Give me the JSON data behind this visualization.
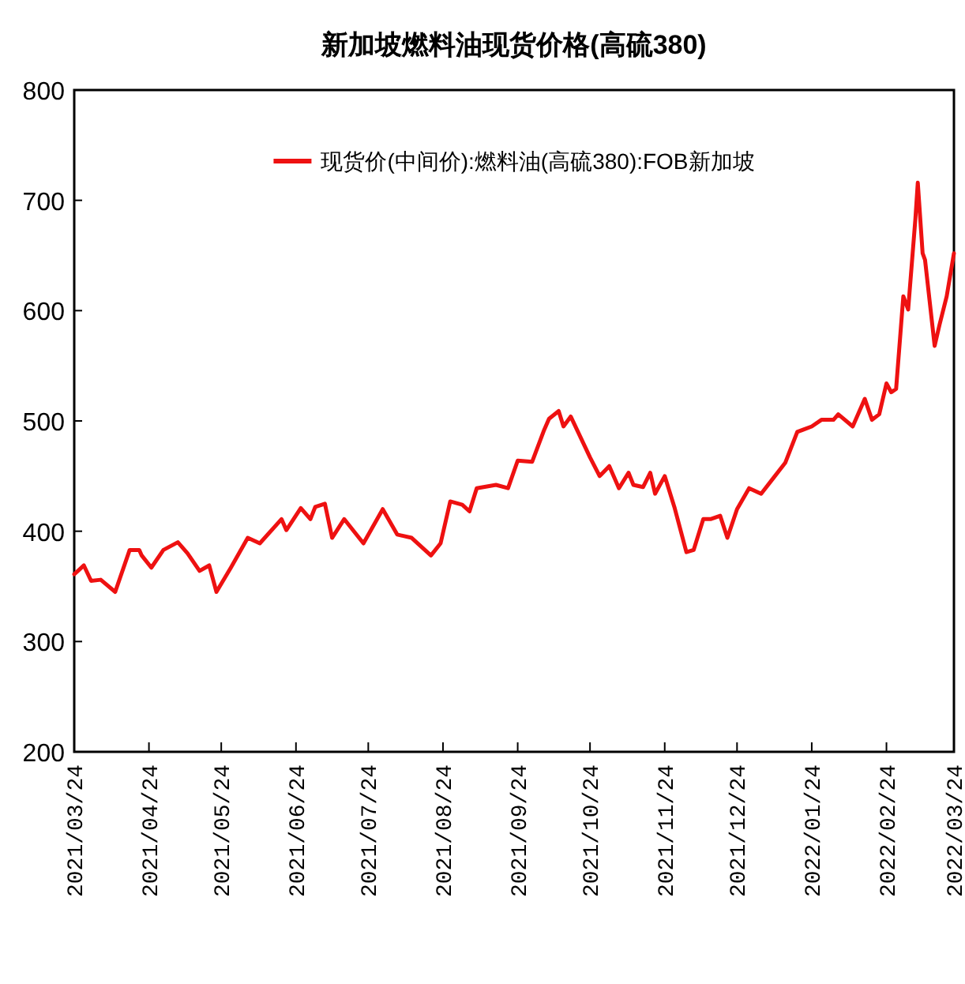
{
  "chart_data": {
    "type": "line",
    "title": "新加坡燃料油现货价格(高硫380)",
    "x": [
      "2021-03-24",
      "2021-03-26",
      "2021-03-28",
      "2021-03-31",
      "2021-04-04",
      "2021-04-10",
      "2021-04-16",
      "2021-04-20",
      "2021-04-21",
      "2021-04-25",
      "2021-04-30",
      "2021-05-06",
      "2021-05-10",
      "2021-05-15",
      "2021-05-19",
      "2021-05-22",
      "2021-05-28",
      "2021-06-04",
      "2021-06-09",
      "2021-06-18",
      "2021-06-20",
      "2021-06-26",
      "2021-06-30",
      "2021-07-02",
      "2021-07-06",
      "2021-07-09",
      "2021-07-14",
      "2021-07-22",
      "2021-07-30",
      "2021-08-05",
      "2021-08-11",
      "2021-08-19",
      "2021-08-23",
      "2021-08-27",
      "2021-09-01",
      "2021-09-04",
      "2021-09-07",
      "2021-09-15",
      "2021-09-20",
      "2021-09-24",
      "2021-09-30",
      "2021-10-05",
      "2021-10-07",
      "2021-10-11",
      "2021-10-13",
      "2021-10-16",
      "2021-10-24",
      "2021-10-28",
      "2021-11-01",
      "2021-11-05",
      "2021-11-09",
      "2021-11-11",
      "2021-11-15",
      "2021-11-18",
      "2021-11-20",
      "2021-11-24",
      "2021-11-28",
      "2021-12-03",
      "2021-12-06",
      "2021-12-10",
      "2021-12-13",
      "2021-12-17",
      "2021-12-20",
      "2021-12-24",
      "2021-12-29",
      "2022-01-03",
      "2022-01-08",
      "2022-01-13",
      "2022-01-18",
      "2022-01-24",
      "2022-01-28",
      "2022-02-02",
      "2022-02-04",
      "2022-02-10",
      "2022-02-15",
      "2022-02-18",
      "2022-02-21",
      "2022-02-24",
      "2022-02-26",
      "2022-02-28",
      "2022-03-03",
      "2022-03-05",
      "2022-03-08",
      "2022-03-09",
      "2022-03-11",
      "2022-03-12",
      "2022-03-16",
      "2022-03-18",
      "2022-03-21",
      "2022-03-24"
    ],
    "series": [
      {
        "name": "现货价(中间价):燃料油(高硫380):FOB新加坡",
        "color": "#ee1111",
        "values": [
          361,
          365,
          369,
          355,
          356,
          345,
          383,
          383,
          378,
          367,
          383,
          390,
          380,
          364,
          369,
          345,
          367,
          394,
          389,
          411,
          401,
          421,
          411,
          422,
          425,
          394,
          411,
          389,
          420,
          397,
          394,
          378,
          389,
          427,
          424,
          418,
          439,
          442,
          439,
          464,
          463,
          492,
          502,
          509,
          495,
          504,
          467,
          450,
          459,
          439,
          453,
          442,
          440,
          453,
          434,
          450,
          422,
          381,
          383,
          411,
          411,
          414,
          394,
          420,
          439,
          434,
          448,
          462,
          490,
          495,
          501,
          501,
          506,
          495,
          520,
          501,
          506,
          534,
          526,
          529,
          613,
          601,
          683,
          716,
          652,
          646,
          568,
          587,
          613,
          652
        ]
      }
    ],
    "xlim": [
      "2021-03-24",
      "2022-03-24"
    ],
    "xticks": [
      {
        "value": "2021-03-24",
        "label": "2021/03/24"
      },
      {
        "value": "2021-04-24",
        "label": "2021/04/24"
      },
      {
        "value": "2021-05-24",
        "label": "2021/05/24"
      },
      {
        "value": "2021-06-24",
        "label": "2021/06/24"
      },
      {
        "value": "2021-07-24",
        "label": "2021/07/24"
      },
      {
        "value": "2021-08-24",
        "label": "2021/08/24"
      },
      {
        "value": "2021-09-24",
        "label": "2021/09/24"
      },
      {
        "value": "2021-10-24",
        "label": "2021/10/24"
      },
      {
        "value": "2021-11-24",
        "label": "2021/11/24"
      },
      {
        "value": "2021-12-24",
        "label": "2021/12/24"
      },
      {
        "value": "2022-01-24",
        "label": "2022/01/24"
      },
      {
        "value": "2022-02-24",
        "label": "2022/02/24"
      },
      {
        "value": "2022-03-24",
        "label": "2022/03/24"
      }
    ],
    "ylim": [
      200,
      800
    ],
    "yticks": [
      200,
      300,
      400,
      500,
      600,
      700,
      800
    ],
    "legend": "top"
  }
}
